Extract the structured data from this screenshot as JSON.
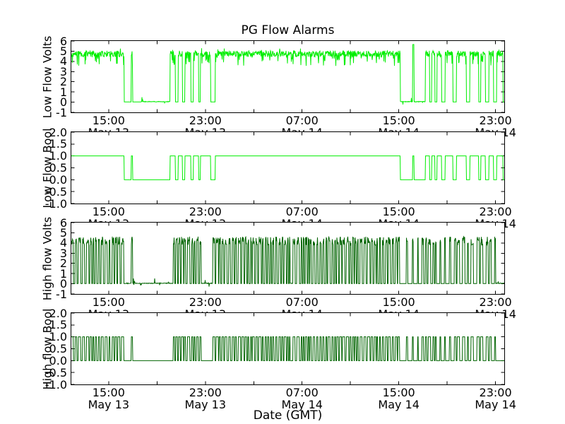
{
  "figure": {
    "background": "#ffffff",
    "axis_color": "#000000"
  },
  "chart_data": {
    "type": "line",
    "title": "PG Flow Alarms",
    "xlabel": "Date (GMT)",
    "grid": false,
    "legend": "none",
    "x_axis": {
      "tick_positions": [
        0.0862,
        0.1979,
        0.3096,
        0.4213,
        0.533,
        0.6447,
        0.7564,
        0.8681,
        0.9798
      ],
      "labeled_ticks": [
        {
          "pos": 0.0862,
          "time": "15:00",
          "date": "May 13"
        },
        {
          "pos": 0.3096,
          "time": "23:00",
          "date": "May 13"
        },
        {
          "pos": 0.533,
          "time": "07:00",
          "date": "May 14"
        },
        {
          "pos": 0.7564,
          "time": "15:00",
          "date": "May 14"
        },
        {
          "pos": 0.9798,
          "time": "23:00",
          "date": "May 14"
        }
      ]
    },
    "subplots": [
      {
        "name": "low-flow-volts",
        "ylabel": "Low Flow Volts",
        "ylim": [
          -1,
          6
        ],
        "yticks": [
          "6",
          "5",
          "4",
          "3",
          "2",
          "1",
          "0",
          "-1"
        ],
        "color": "#00ee00",
        "signal": "low_flow",
        "mode": "volts",
        "high": 5.0,
        "noise": "band"
      },
      {
        "name": "low-flow-bool",
        "ylabel": "Low Flow Bool",
        "ylim": [
          -1,
          2
        ],
        "yticks": [
          "2.0",
          "1.5",
          "1.0",
          "0.5",
          "0.0",
          "-0.5",
          "-1.0"
        ],
        "color": "#00ee00",
        "signal": "low_flow",
        "mode": "bool"
      },
      {
        "name": "high-flow-volts",
        "ylabel": "High flow Volts",
        "ylim": [
          -1,
          6
        ],
        "yticks": [
          "6",
          "5",
          "4",
          "3",
          "2",
          "1",
          "0",
          "-1"
        ],
        "color": "#006400",
        "signal": "high_flow",
        "mode": "volts",
        "high": 4.2,
        "noise": "sym"
      },
      {
        "name": "high-flow-bool",
        "ylabel": "High flow Bool",
        "ylim": [
          -1,
          2
        ],
        "yticks": [
          "2.0",
          "1.5",
          "1.0",
          "0.5",
          "0.0",
          "-0.5",
          "-1.0"
        ],
        "color": "#006400",
        "signal": "high_flow",
        "mode": "bool"
      }
    ],
    "signals": {
      "low_flow": {
        "seed": 1337,
        "segments": [
          [
            0.0,
            0.122,
            "high"
          ],
          [
            0.122,
            0.138,
            "low"
          ],
          [
            0.138,
            0.1415,
            "spike"
          ],
          [
            0.1415,
            0.16,
            "low"
          ],
          [
            0.16,
            0.228,
            "lownoise"
          ],
          [
            0.228,
            0.3,
            "pulses"
          ],
          [
            0.3,
            0.322,
            "high"
          ],
          [
            0.322,
            0.332,
            "low"
          ],
          [
            0.332,
            0.76,
            "high"
          ],
          [
            0.76,
            0.788,
            "lownoise"
          ],
          [
            0.788,
            0.792,
            "tallspike"
          ],
          [
            0.792,
            0.818,
            "lownoise"
          ],
          [
            0.818,
            0.845,
            "pulses"
          ],
          [
            0.845,
            1.001,
            "highdips"
          ]
        ]
      },
      "high_flow": {
        "seed": 2024,
        "segments": [
          [
            0.0,
            0.09,
            "burst"
          ],
          [
            0.09,
            0.094,
            "low"
          ],
          [
            0.094,
            0.125,
            "burst"
          ],
          [
            0.125,
            0.138,
            "lownoise"
          ],
          [
            0.138,
            0.1415,
            "spike"
          ],
          [
            0.1415,
            0.235,
            "lownoise"
          ],
          [
            0.235,
            0.3,
            "burst"
          ],
          [
            0.3,
            0.327,
            "lownoise"
          ],
          [
            0.327,
            0.505,
            "burst"
          ],
          [
            0.505,
            0.512,
            "lownoise"
          ],
          [
            0.512,
            0.76,
            "burst"
          ],
          [
            0.76,
            0.8,
            "sparse"
          ],
          [
            0.8,
            0.98,
            "burst2"
          ],
          [
            0.98,
            1.001,
            "lownoise"
          ]
        ]
      }
    }
  }
}
